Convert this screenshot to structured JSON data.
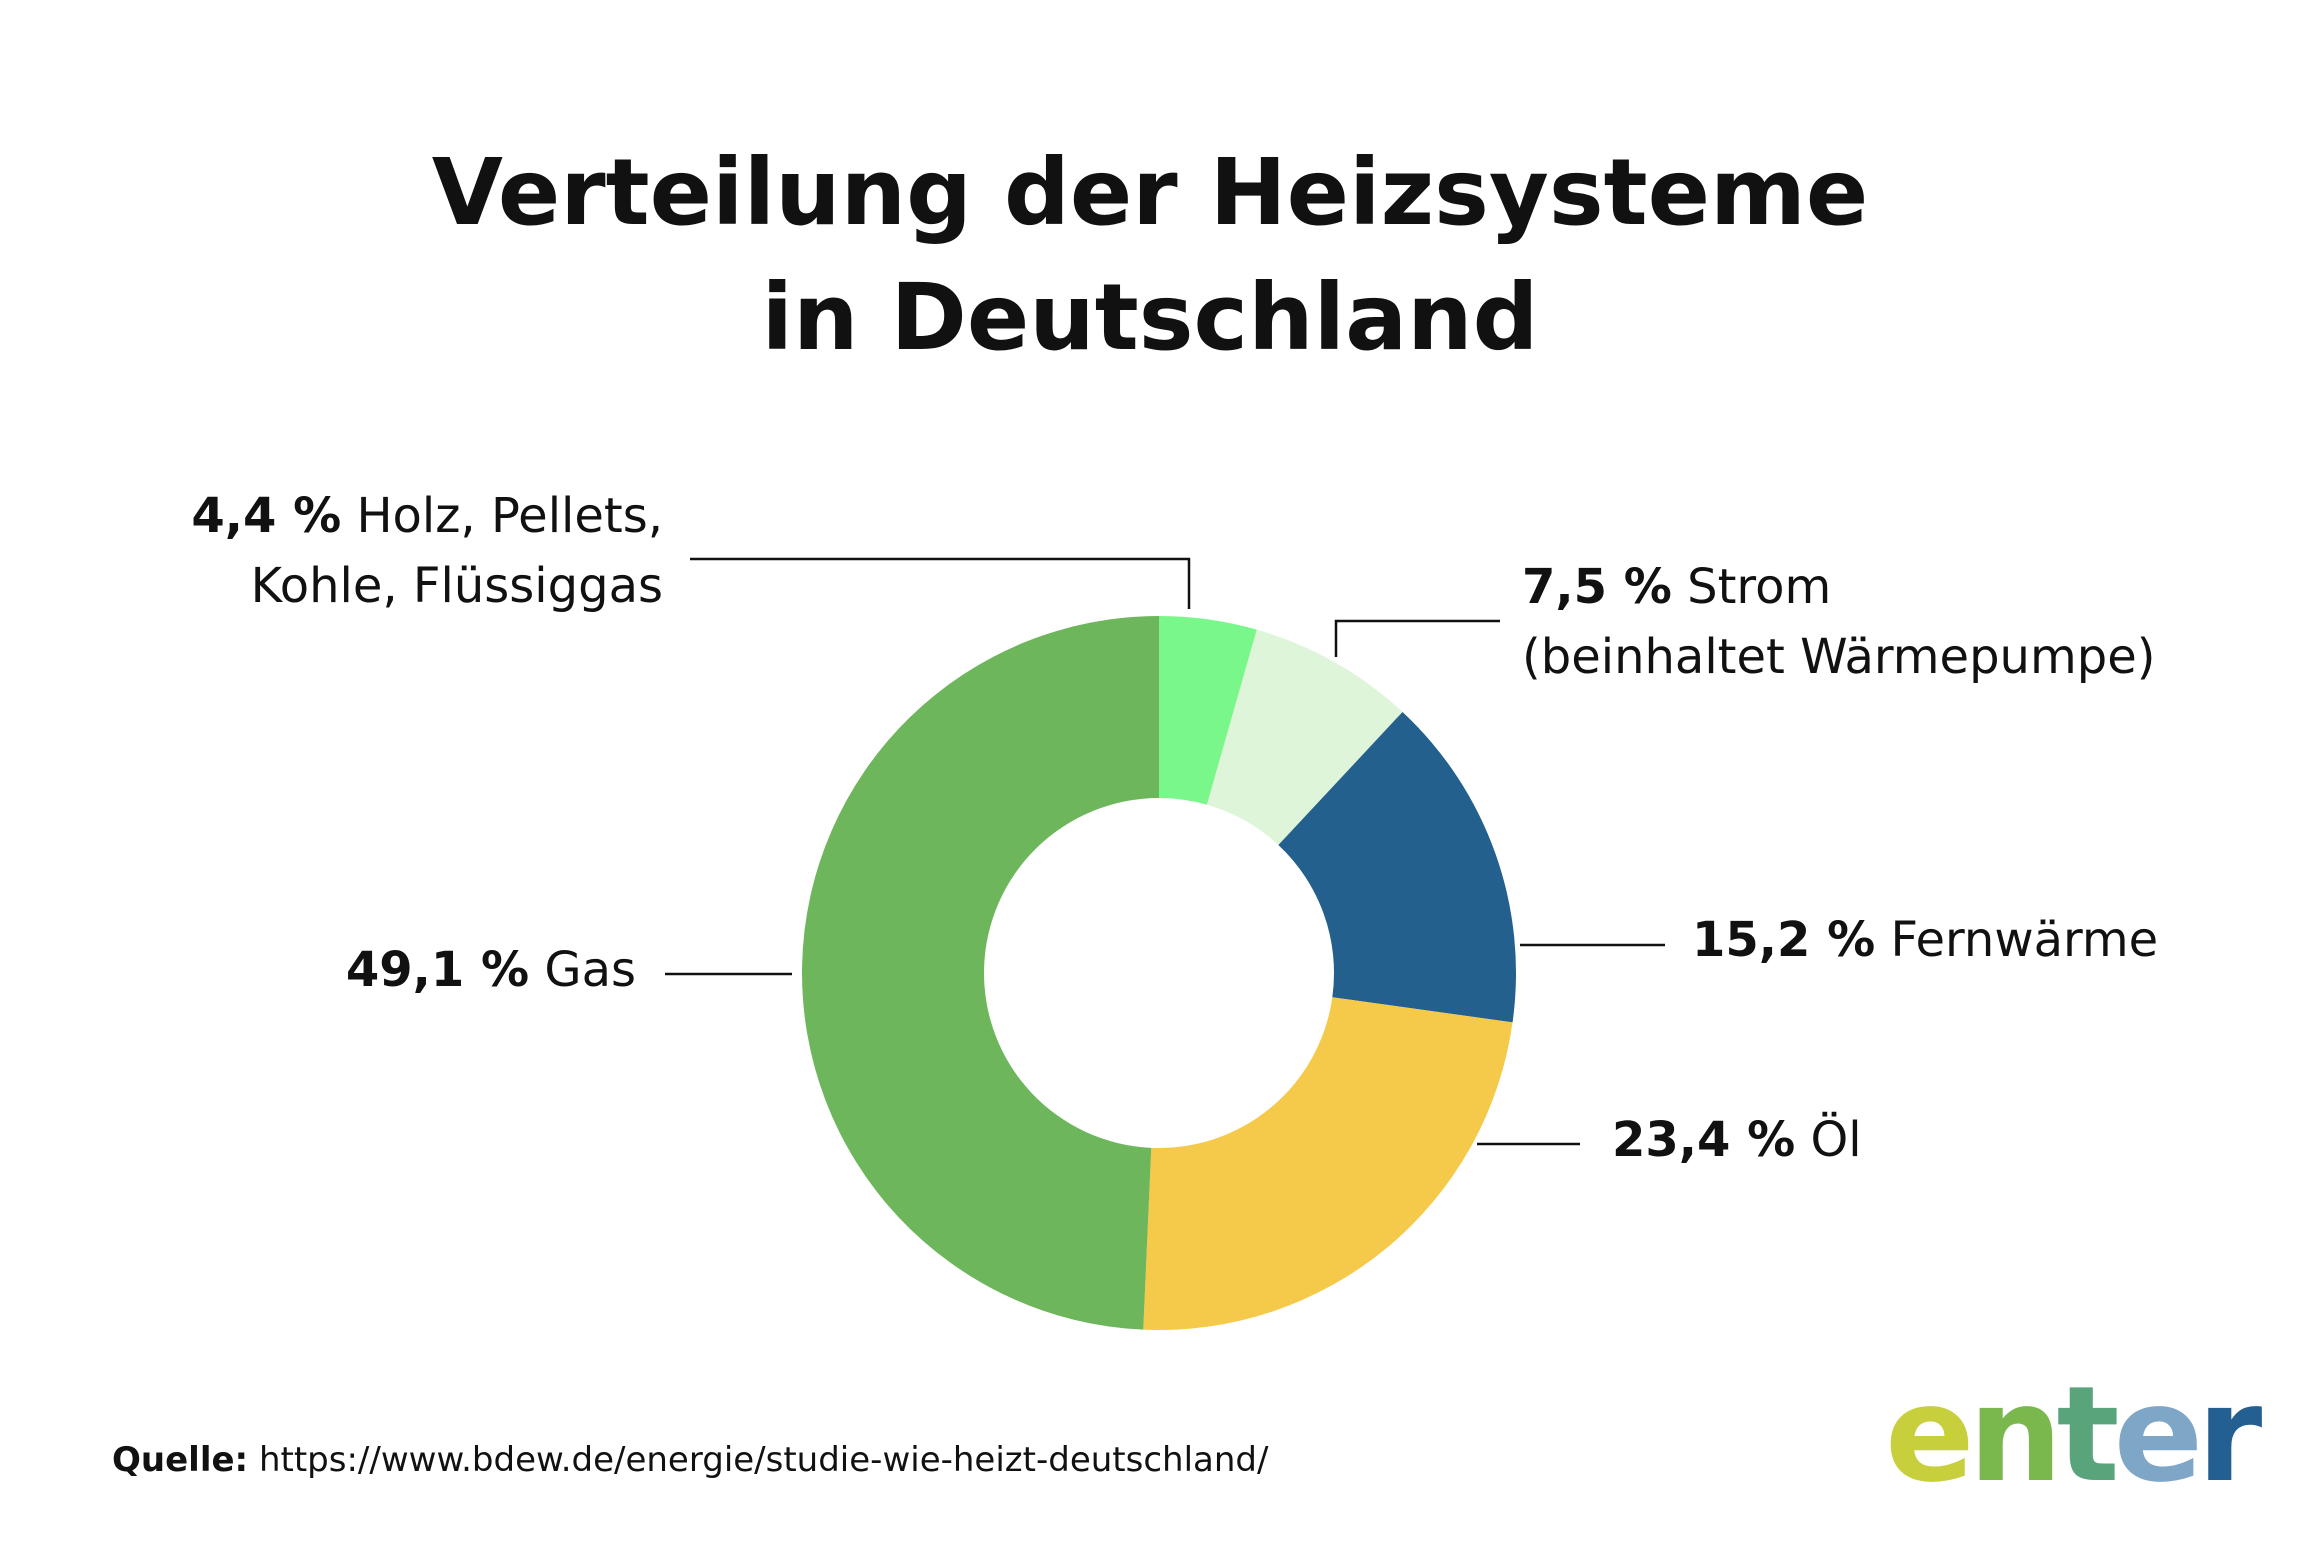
{
  "title": {
    "line1": "Verteilung der Heizsysteme",
    "line2": "in Deutschland"
  },
  "chart_data": {
    "type": "pie",
    "donut": true,
    "categories": [
      "Holz, Pellets, Kohle, Flüssiggas",
      "Strom (beinhaltet Wärmepumpe)",
      "Fernwärme",
      "Öl",
      "Gas"
    ],
    "values": [
      4.4,
      7.5,
      15.2,
      23.4,
      49.1
    ],
    "colors": [
      "#7af78a",
      "#dff5da",
      "#23608e",
      "#f5c94a",
      "#6db65c"
    ],
    "legend": "none",
    "labels": [
      {
        "value": "4,4 %",
        "text_line1": "Holz, Pellets,",
        "text_line2": "Kohle, Flüssiggas"
      },
      {
        "value": "7,5 %",
        "text_line1": "Strom",
        "text_line2": "(beinhaltet Wärmepumpe)"
      },
      {
        "value": "15,2 %",
        "text_line1": "Fernwärme"
      },
      {
        "value": "23,4 %",
        "text_line1": "Öl"
      },
      {
        "value": "49,1 %",
        "text_line1": "Gas"
      }
    ]
  },
  "source": {
    "label": "Quelle:",
    "url": "https://www.bdew.de/energie/studie-wie-heizt-deutschland/"
  },
  "logo": {
    "letters": [
      "e",
      "n",
      "t",
      "e",
      "r"
    ],
    "colors": [
      "#c7cf3c",
      "#7ab84e",
      "#5aa47c",
      "#7ea6c7",
      "#245f91"
    ]
  }
}
